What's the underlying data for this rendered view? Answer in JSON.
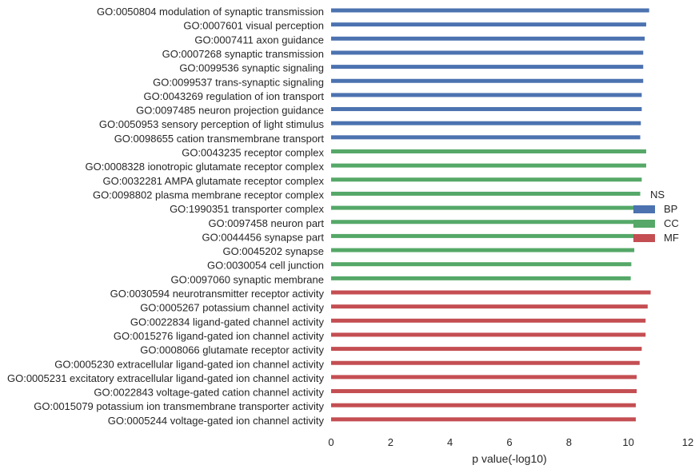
{
  "chart_data": {
    "type": "bar",
    "orientation": "horizontal",
    "xlabel": "p value(-log10)",
    "ylabel": "",
    "xlim": [
      0,
      12
    ],
    "x_ticks": [
      0,
      2,
      4,
      6,
      8,
      10,
      12
    ],
    "grid": false,
    "legend": {
      "title": "NS",
      "placement": "right",
      "entries": [
        "BP",
        "CC",
        "MF"
      ]
    },
    "colors": {
      "BP": "#4c72b0",
      "CC": "#55a868",
      "MF": "#c44e52"
    },
    "categories": [
      "GO:0050804 modulation of synaptic transmission",
      "GO:0007601 visual perception",
      "GO:0007411 axon guidance",
      "GO:0007268 synaptic transmission",
      "GO:0099536 synaptic signaling",
      "GO:0099537 trans-synaptic signaling",
      "GO:0043269 regulation of ion transport",
      "GO:0097485 neuron projection guidance",
      "GO:0050953 sensory perception of light stimulus",
      "GO:0098655 cation transmembrane transport",
      "GO:0043235 receptor complex",
      "GO:0008328 ionotropic glutamate receptor complex",
      "GO:0032281 AMPA glutamate receptor complex",
      "GO:0098802 plasma membrane receptor complex",
      "GO:1990351 transporter complex",
      "GO:0097458 neuron part",
      "GO:0044456 synapse part",
      "GO:0045202 synapse",
      "GO:0030054 cell junction",
      "GO:0097060 synaptic membrane",
      "GO:0030594 neurotransmitter receptor activity",
      "GO:0005267 potassium channel activity",
      "GO:0022834 ligand-gated channel activity",
      "GO:0015276 ligand-gated ion channel activity",
      "GO:0008066 glutamate receptor activity",
      "GO:0005230 extracellular ligand-gated ion channel activity",
      "GO:0005231 excitatory extracellular ligand-gated ion channel activity",
      "GO:0022843 voltage-gated cation channel activity",
      "GO:0015079 potassium ion transmembrane transporter activity",
      "GO:0005244 voltage-gated ion channel activity"
    ],
    "groups": [
      "BP",
      "BP",
      "BP",
      "BP",
      "BP",
      "BP",
      "BP",
      "BP",
      "BP",
      "BP",
      "CC",
      "CC",
      "CC",
      "CC",
      "CC",
      "CC",
      "CC",
      "CC",
      "CC",
      "CC",
      "MF",
      "MF",
      "MF",
      "MF",
      "MF",
      "MF",
      "MF",
      "MF",
      "MF",
      "MF"
    ],
    "values": [
      10.7,
      10.6,
      10.55,
      10.5,
      10.5,
      10.5,
      10.45,
      10.45,
      10.42,
      10.4,
      10.6,
      10.6,
      10.45,
      10.4,
      10.25,
      10.22,
      10.2,
      10.2,
      10.1,
      10.08,
      10.75,
      10.65,
      10.58,
      10.58,
      10.45,
      10.38,
      10.28,
      10.28,
      10.25,
      10.25
    ]
  }
}
